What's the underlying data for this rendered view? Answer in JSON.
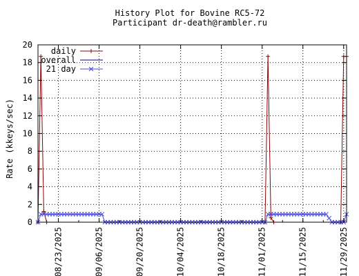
{
  "chart_data": {
    "type": "line",
    "title": "History Plot for Bovine RC5-72",
    "subtitle": "Participant dr-death@rambler.ru",
    "xlabel": "",
    "ylabel": "Rate (kkeys/sec)",
    "ylim": [
      0,
      20
    ],
    "yticks": [
      "0",
      "2",
      "4",
      "6",
      "8",
      "10",
      "12",
      "14",
      "16",
      "18",
      "20"
    ],
    "xlim": [
      "2025-08-16",
      "2025-11-30"
    ],
    "xticks": [
      "08/23/2025",
      "09/06/2025",
      "09/20/2025",
      "10/04/2025",
      "10/18/2025",
      "11/01/2025",
      "11/15/2025",
      "11/29/2025"
    ],
    "xtick_dates": [
      "2025-08-23",
      "2025-09-06",
      "2025-09-20",
      "2025-10-04",
      "2025-10-18",
      "2025-11-01",
      "2025-11-15",
      "2025-11-29"
    ],
    "grid": true,
    "legend_position": "top-left",
    "series": [
      {
        "name": "daily",
        "color": "#8b0000",
        "marker": "plus",
        "points": [
          {
            "x": "2025-08-16",
            "y": 0.0
          },
          {
            "x": "2025-08-17",
            "y": 18.7
          },
          {
            "x": "2025-08-18",
            "y": 1.2
          },
          {
            "x": "2025-08-19",
            "y": 0.0
          },
          {
            "x": "2025-11-02",
            "y": 0.0
          },
          {
            "x": "2025-11-03",
            "y": 18.7
          },
          {
            "x": "2025-11-04",
            "y": 0.5
          },
          {
            "x": "2025-11-05",
            "y": 0.0
          },
          {
            "x": "2025-11-28",
            "y": 0.0
          },
          {
            "x": "2025-11-29",
            "y": 18.7
          },
          {
            "x": "2025-11-30",
            "y": 18.7
          }
        ]
      },
      {
        "name": "overall",
        "color": "#000080",
        "marker": "none",
        "points": [
          {
            "x": "2025-08-16",
            "y": 0.0
          },
          {
            "x": "2025-11-30",
            "y": 0.0
          }
        ]
      },
      {
        "name": "21 day",
        "color": "#4a4ad8",
        "marker": "cross",
        "points": [
          {
            "x": "2025-08-16",
            "y": 0.0
          },
          {
            "x": "2025-08-17",
            "y": 0.9
          },
          {
            "x": "2025-09-07",
            "y": 0.9
          },
          {
            "x": "2025-09-08",
            "y": 0.0
          },
          {
            "x": "2025-11-02",
            "y": 0.0
          },
          {
            "x": "2025-11-03",
            "y": 0.9
          },
          {
            "x": "2025-11-23",
            "y": 0.9
          },
          {
            "x": "2025-11-25",
            "y": 0.0
          },
          {
            "x": "2025-11-29",
            "y": 0.0
          },
          {
            "x": "2025-11-30",
            "y": 0.9
          }
        ]
      }
    ]
  }
}
